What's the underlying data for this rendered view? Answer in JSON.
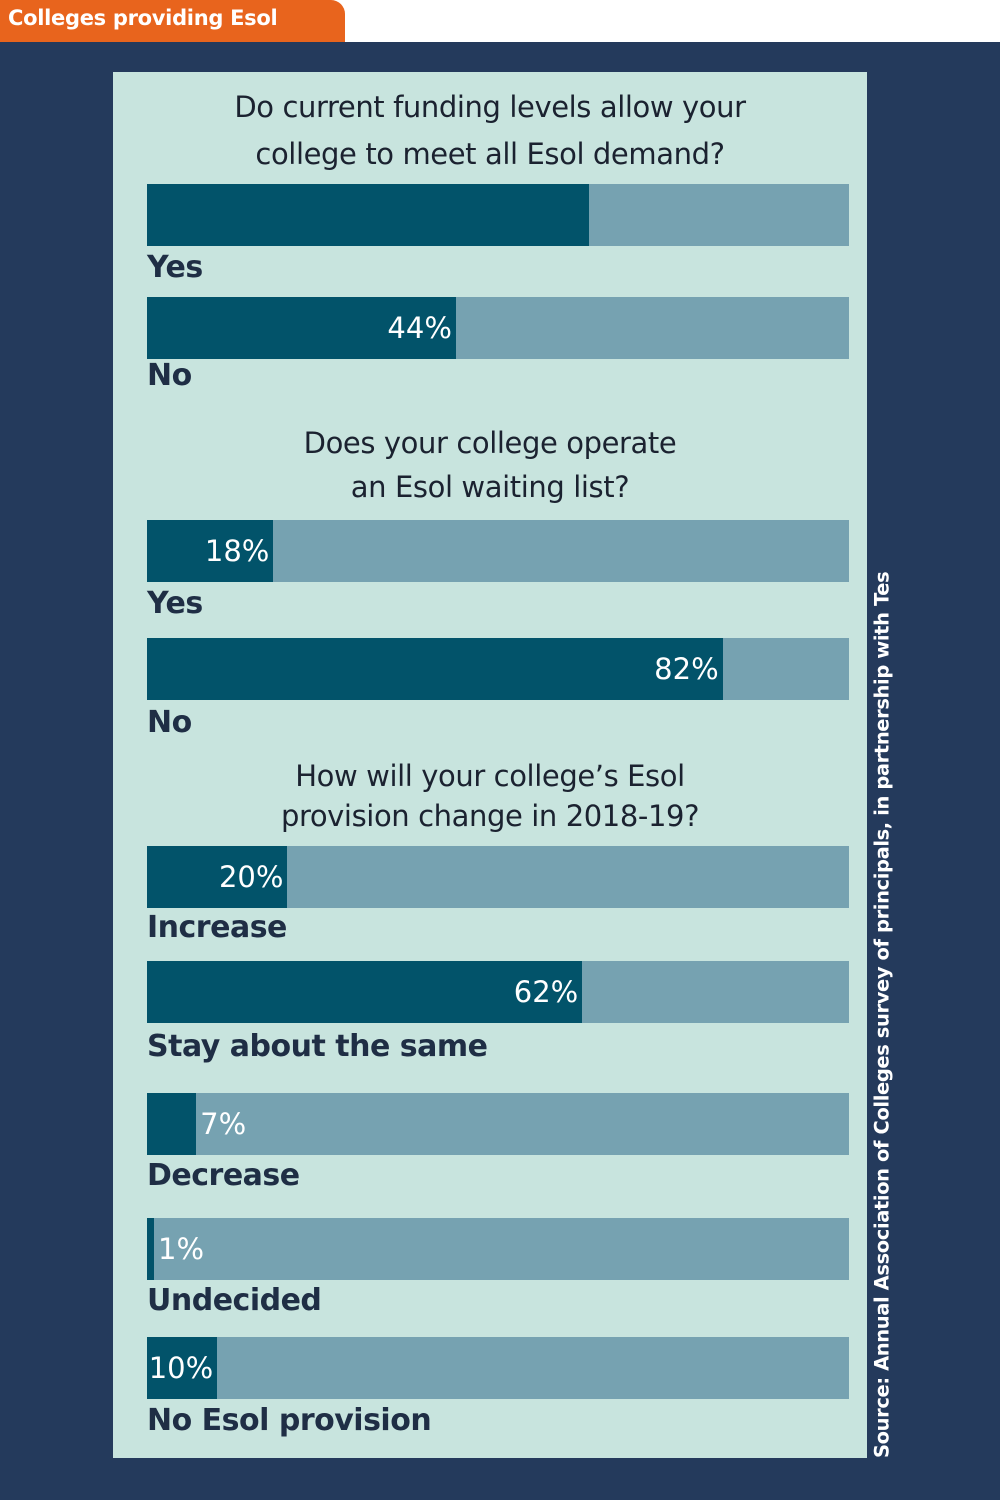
{
  "header": {
    "title": "Colleges providing Esol"
  },
  "source": "Source: Annual Association of Colleges survey of principals, in partnership with Tes",
  "colors": {
    "background": "#243a5c",
    "panel": "#c8e4de",
    "bar_track": "#76a2b1",
    "bar_fill": "#02536a",
    "header_tab": "#e8641d"
  },
  "chart_data": [
    {
      "type": "bar",
      "title": "Do current funding levels allow your college to meet all Esol demand?",
      "title_lines": [
        "Do current funding levels allow your",
        "college to meet all Esol demand?"
      ],
      "categories": [
        "Yes",
        "No"
      ],
      "values": [
        63,
        44
      ],
      "value_labels": [
        "",
        "44%"
      ],
      "unit": "%",
      "xlim": [
        0,
        100
      ]
    },
    {
      "type": "bar",
      "title": "Does your college operate an Esol waiting list?",
      "title_lines": [
        "Does your college operate",
        "an Esol waiting list?"
      ],
      "categories": [
        "Yes",
        "No"
      ],
      "values": [
        18,
        82
      ],
      "value_labels": [
        "18%",
        "82%"
      ],
      "unit": "%",
      "xlim": [
        0,
        100
      ]
    },
    {
      "type": "bar",
      "title": "How will your college’s Esol provision change in 2018-19?",
      "title_lines": [
        "How will your college’s Esol",
        "provision change in 2018-19?"
      ],
      "categories": [
        "Increase",
        "Stay about the same",
        "Decrease",
        "Undecided",
        "No Esol provision"
      ],
      "values": [
        20,
        62,
        7,
        1,
        10
      ],
      "value_labels": [
        "20%",
        "62%",
        "7%",
        "1%",
        "10%"
      ],
      "unit": "%",
      "xlim": [
        0,
        100
      ]
    }
  ]
}
